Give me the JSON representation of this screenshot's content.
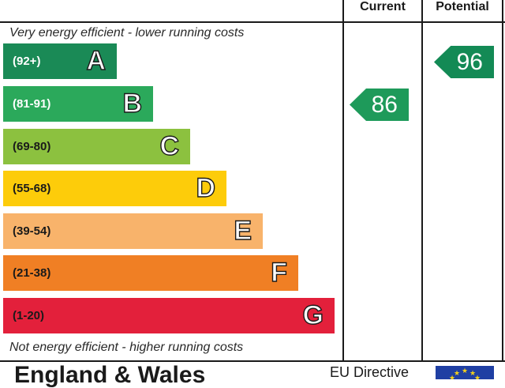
{
  "headers": {
    "current": "Current",
    "potential": "Potential"
  },
  "top_note": "Very energy efficient - lower running costs",
  "bottom_note": "Not energy efficient - higher running costs",
  "footer": {
    "left": "England & Wales",
    "right": "EU Directive"
  },
  "flag_icon": "eu-flag-icon",
  "chart_data": {
    "type": "bar",
    "categories": [
      "A",
      "B",
      "C",
      "D",
      "E",
      "F",
      "G"
    ],
    "bands": [
      {
        "letter": "A",
        "range": "(92+)",
        "color": "#1a8a56",
        "text_color": "#ffffff"
      },
      {
        "letter": "B",
        "range": "(81-91)",
        "color": "#2ba95b",
        "text_color": "#ffffff"
      },
      {
        "letter": "C",
        "range": "(69-80)",
        "color": "#8cc13f",
        "text_color": "#1a1a1a"
      },
      {
        "letter": "D",
        "range": "(55-68)",
        "color": "#fdcc0a",
        "text_color": "#1a1a1a"
      },
      {
        "letter": "E",
        "range": "(39-54)",
        "color": "#f8b36b",
        "text_color": "#1a1a1a"
      },
      {
        "letter": "F",
        "range": "(21-38)",
        "color": "#f07f24",
        "text_color": "#1a1a1a"
      },
      {
        "letter": "G",
        "range": "(1-20)",
        "color": "#e3203b",
        "text_color": "#1a1a1a"
      }
    ],
    "current": {
      "value": "86",
      "band": "B",
      "color": "#1e9a5a"
    },
    "potential": {
      "value": "96",
      "band": "A",
      "color": "#138a55"
    }
  }
}
